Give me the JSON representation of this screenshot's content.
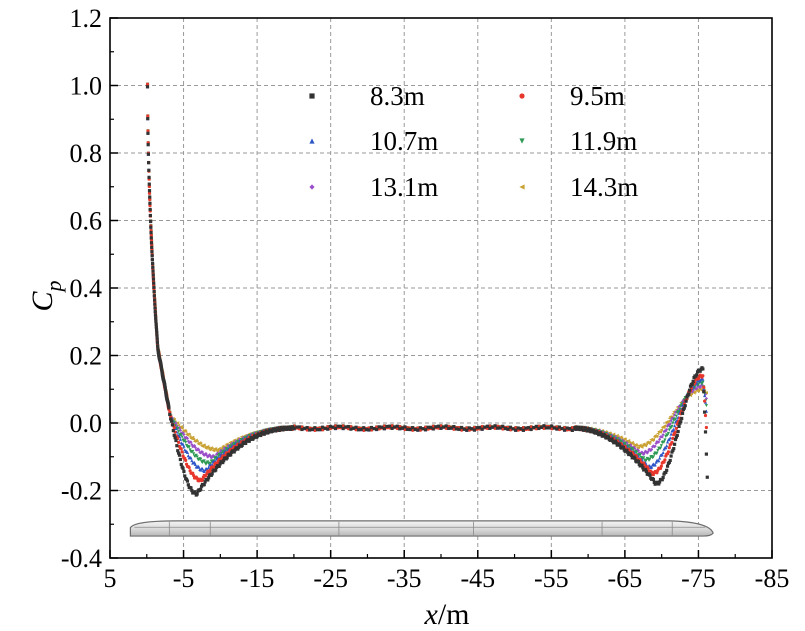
{
  "chart_data": {
    "type": "scatter",
    "title": "",
    "xlabel_var": "x",
    "xlabel_unit": "/m",
    "ylabel_main": "C",
    "ylabel_sub": "p",
    "xlim": [
      5,
      -85
    ],
    "ylim": [
      -0.4,
      1.2
    ],
    "xticks": [
      5,
      -5,
      -15,
      -25,
      -35,
      -45,
      -55,
      -65,
      -75,
      -85
    ],
    "yticks": [
      -0.4,
      -0.2,
      0.0,
      0.2,
      0.4,
      0.6,
      0.8,
      1.0,
      1.2
    ],
    "xtick_labels": [
      "5",
      "-5",
      "-15",
      "-25",
      "-35",
      "-45",
      "-55",
      "-65",
      "-75",
      "-85"
    ],
    "ytick_labels": [
      "-0.4",
      "-0.2",
      "0.0",
      "0.2",
      "0.4",
      "0.6",
      "0.8",
      "1.0",
      "1.2"
    ],
    "grid": true,
    "legend_position": "top-center",
    "series": [
      {
        "name": "8.3m",
        "color": "#333333",
        "marker": "square",
        "nose_min": [
          -6.8,
          -0.21
        ],
        "tail_min": [
          -69.2,
          -0.18
        ],
        "tail_peak": [
          -75.6,
          0.16
        ],
        "tail_end": [
          -76.3,
          -0.21
        ],
        "plateau": -0.015
      },
      {
        "name": "9.5m",
        "color": "#e8372c",
        "marker": "circle",
        "nose_min": [
          -7.4,
          -0.17
        ],
        "tail_min": [
          -68.7,
          -0.15
        ],
        "tail_peak": [
          -75.6,
          0.14
        ],
        "tail_end": [
          -76.2,
          -0.05
        ],
        "plateau": -0.015
      },
      {
        "name": "10.7m",
        "color": "#2f56c8",
        "marker": "triangle-up",
        "nose_min": [
          -8.0,
          -0.14
        ],
        "tail_min": [
          -68.2,
          -0.13
        ],
        "tail_peak": [
          -75.6,
          0.13
        ],
        "tail_end": [
          -76.1,
          0.03
        ],
        "plateau": -0.015
      },
      {
        "name": "11.9m",
        "color": "#2e9a55",
        "marker": "triangle-down",
        "nose_min": [
          -8.6,
          -0.12
        ],
        "tail_min": [
          -67.7,
          -0.11
        ],
        "tail_peak": [
          -75.6,
          0.12
        ],
        "tail_end": [
          -76.1,
          0.05
        ],
        "plateau": -0.015
      },
      {
        "name": "13.1m",
        "color": "#9a4fc9",
        "marker": "diamond",
        "nose_min": [
          -9.2,
          -0.1
        ],
        "tail_min": [
          -67.2,
          -0.09
        ],
        "tail_peak": [
          -75.6,
          0.11
        ],
        "tail_end": [
          -76.1,
          0.07
        ],
        "plateau": -0.015
      },
      {
        "name": "14.3m",
        "color": "#c9a233",
        "marker": "triangle-left",
        "nose_min": [
          -9.8,
          -0.08
        ],
        "tail_min": [
          -66.7,
          -0.07
        ],
        "tail_peak": [
          -75.6,
          0.1
        ],
        "tail_end": [
          -76.1,
          0.09
        ],
        "plateau": -0.015
      }
    ],
    "stagnation_peak": [
      -0.1,
      1.0
    ],
    "train_outline": {
      "x_start": 2.5,
      "x_end": -77.0,
      "y_top": -0.29,
      "y_bottom": -0.335
    }
  }
}
